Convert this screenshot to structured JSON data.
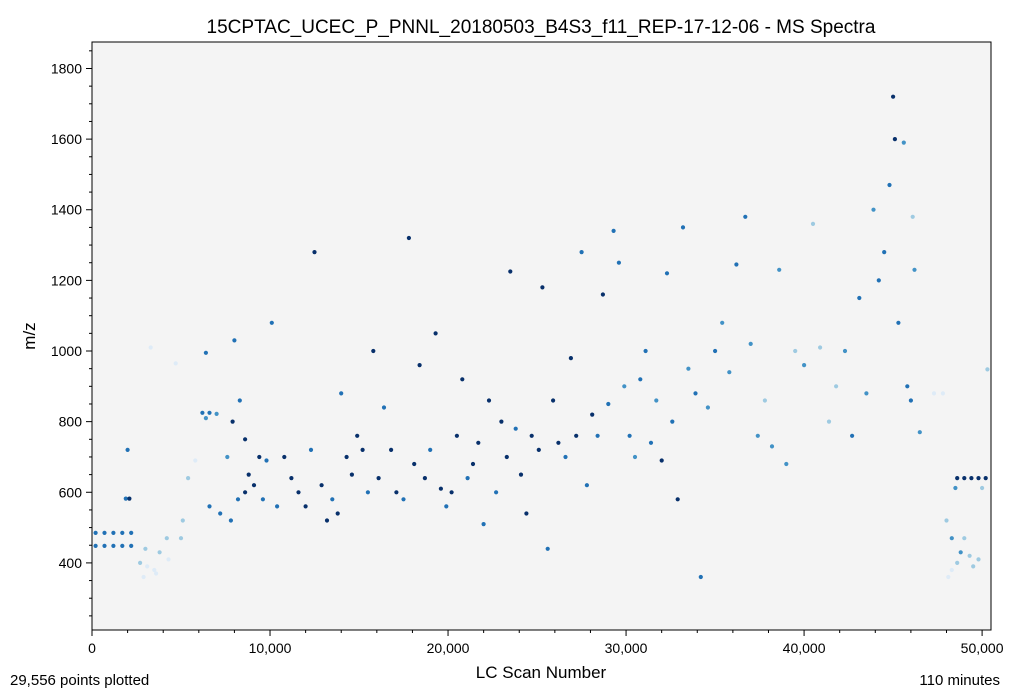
{
  "chart_data": {
    "type": "scatter",
    "title": "15CPTAC_UCEC_P_PNNL_20180503_B4S3_f11_REP-17-12-06 - MS Spectra",
    "xlabel": "LC Scan Number",
    "ylabel": "m/z",
    "xlim": [
      0,
      50500
    ],
    "ylim": [
      210,
      1875
    ],
    "x_ticks": [
      0,
      10000,
      20000,
      30000,
      40000,
      50000
    ],
    "x_tick_labels": [
      "0",
      "10,000",
      "20,000",
      "30,000",
      "40,000",
      "50,000"
    ],
    "y_ticks": [
      400,
      600,
      800,
      1000,
      1200,
      1400,
      1600,
      1800
    ],
    "y_tick_labels": [
      "400",
      "600",
      "800",
      "1000",
      "1200",
      "1400",
      "1600",
      "1800"
    ],
    "grid": false,
    "background_color": "#f4f4f4",
    "color_map": "blues",
    "colors": [
      "#deebf7",
      "#9ecae1",
      "#4292c6",
      "#2171b5",
      "#08306b"
    ],
    "points": [
      [
        200,
        448,
        3
      ],
      [
        700,
        448,
        3
      ],
      [
        1200,
        448,
        3
      ],
      [
        1700,
        448,
        3
      ],
      [
        2200,
        448,
        3
      ],
      [
        200,
        485,
        3
      ],
      [
        700,
        485,
        3
      ],
      [
        1200,
        485,
        3
      ],
      [
        1700,
        485,
        3
      ],
      [
        2200,
        485,
        3
      ],
      [
        1900,
        582,
        3
      ],
      [
        2100,
        582,
        4
      ],
      [
        2000,
        720,
        3
      ],
      [
        2700,
        400,
        1
      ],
      [
        3100,
        390,
        0
      ],
      [
        3500,
        380,
        0
      ],
      [
        3000,
        440,
        1
      ],
      [
        3800,
        430,
        1
      ],
      [
        4300,
        410,
        0
      ],
      [
        2900,
        360,
        0
      ],
      [
        3600,
        370,
        0
      ],
      [
        4200,
        470,
        1
      ],
      [
        5000,
        470,
        1
      ],
      [
        3300,
        1010,
        0
      ],
      [
        4700,
        965,
        0
      ],
      [
        5100,
        520,
        1
      ],
      [
        5400,
        640,
        1
      ],
      [
        5800,
        690,
        0
      ],
      [
        6200,
        825,
        3
      ],
      [
        6600,
        825,
        3
      ],
      [
        7000,
        822,
        2
      ],
      [
        6400,
        810,
        2
      ],
      [
        6400,
        995,
        3
      ],
      [
        6600,
        560,
        3
      ],
      [
        7200,
        540,
        3
      ],
      [
        7800,
        520,
        3
      ],
      [
        8200,
        580,
        3
      ],
      [
        8600,
        600,
        4
      ],
      [
        8800,
        650,
        4
      ],
      [
        9400,
        700,
        4
      ],
      [
        9800,
        690,
        3
      ],
      [
        7600,
        700,
        2
      ],
      [
        7900,
        800,
        4
      ],
      [
        8000,
        1030,
        3
      ],
      [
        8300,
        860,
        3
      ],
      [
        8600,
        750,
        4
      ],
      [
        9100,
        620,
        4
      ],
      [
        9600,
        580,
        3
      ],
      [
        10100,
        1080,
        3
      ],
      [
        10400,
        560,
        3
      ],
      [
        10800,
        700,
        4
      ],
      [
        11200,
        640,
        4
      ],
      [
        11600,
        600,
        4
      ],
      [
        12000,
        560,
        4
      ],
      [
        12300,
        720,
        3
      ],
      [
        12500,
        1280,
        4
      ],
      [
        12900,
        620,
        4
      ],
      [
        13200,
        520,
        4
      ],
      [
        13500,
        580,
        3
      ],
      [
        13800,
        540,
        4
      ],
      [
        14000,
        880,
        3
      ],
      [
        14300,
        700,
        4
      ],
      [
        14600,
        650,
        4
      ],
      [
        14900,
        760,
        4
      ],
      [
        15200,
        720,
        4
      ],
      [
        15500,
        600,
        3
      ],
      [
        15800,
        1000,
        4
      ],
      [
        16100,
        640,
        4
      ],
      [
        16400,
        840,
        3
      ],
      [
        16800,
        720,
        4
      ],
      [
        17100,
        600,
        4
      ],
      [
        17500,
        580,
        3
      ],
      [
        17800,
        1320,
        4
      ],
      [
        18100,
        680,
        4
      ],
      [
        18400,
        960,
        4
      ],
      [
        18700,
        640,
        4
      ],
      [
        19000,
        720,
        3
      ],
      [
        19300,
        1050,
        4
      ],
      [
        19600,
        610,
        4
      ],
      [
        19900,
        560,
        3
      ],
      [
        20200,
        600,
        4
      ],
      [
        20500,
        760,
        4
      ],
      [
        20800,
        920,
        4
      ],
      [
        21100,
        640,
        3
      ],
      [
        21400,
        680,
        4
      ],
      [
        21700,
        740,
        4
      ],
      [
        22000,
        510,
        3
      ],
      [
        22300,
        860,
        4
      ],
      [
        22700,
        600,
        3
      ],
      [
        23000,
        800,
        4
      ],
      [
        23300,
        700,
        4
      ],
      [
        23500,
        1225,
        4
      ],
      [
        23800,
        780,
        3
      ],
      [
        24100,
        650,
        4
      ],
      [
        24400,
        540,
        4
      ],
      [
        24700,
        760,
        4
      ],
      [
        25100,
        720,
        4
      ],
      [
        25300,
        1180,
        4
      ],
      [
        25600,
        440,
        3
      ],
      [
        25900,
        860,
        4
      ],
      [
        26200,
        740,
        4
      ],
      [
        26600,
        700,
        3
      ],
      [
        26900,
        980,
        4
      ],
      [
        27200,
        760,
        4
      ],
      [
        27500,
        1280,
        3
      ],
      [
        27800,
        620,
        3
      ],
      [
        28100,
        820,
        4
      ],
      [
        28400,
        760,
        3
      ],
      [
        28700,
        1160,
        4
      ],
      [
        29000,
        850,
        3
      ],
      [
        29300,
        1340,
        3
      ],
      [
        29600,
        1250,
        3
      ],
      [
        29900,
        900,
        2
      ],
      [
        30200,
        760,
        3
      ],
      [
        30500,
        700,
        2
      ],
      [
        30800,
        920,
        3
      ],
      [
        31100,
        1000,
        3
      ],
      [
        31400,
        740,
        3
      ],
      [
        31700,
        860,
        2
      ],
      [
        32000,
        690,
        4
      ],
      [
        32300,
        1220,
        3
      ],
      [
        32600,
        800,
        3
      ],
      [
        32900,
        580,
        4
      ],
      [
        33200,
        1350,
        3
      ],
      [
        33500,
        950,
        2
      ],
      [
        33900,
        880,
        3
      ],
      [
        34200,
        360,
        3
      ],
      [
        34600,
        840,
        2
      ],
      [
        35000,
        1000,
        3
      ],
      [
        35400,
        1080,
        2
      ],
      [
        35800,
        940,
        2
      ],
      [
        36200,
        1245,
        3
      ],
      [
        36700,
        1380,
        3
      ],
      [
        37000,
        1020,
        2
      ],
      [
        37400,
        760,
        2
      ],
      [
        37800,
        860,
        1
      ],
      [
        38200,
        730,
        2
      ],
      [
        38600,
        1230,
        2
      ],
      [
        39000,
        680,
        2
      ],
      [
        39500,
        1000,
        1
      ],
      [
        40000,
        960,
        2
      ],
      [
        40500,
        1360,
        1
      ],
      [
        40900,
        1010,
        1
      ],
      [
        41400,
        800,
        1
      ],
      [
        41800,
        900,
        1
      ],
      [
        42300,
        1000,
        2
      ],
      [
        42700,
        760,
        3
      ],
      [
        43100,
        1150,
        3
      ],
      [
        43500,
        880,
        2
      ],
      [
        43900,
        1400,
        2
      ],
      [
        44200,
        1200,
        3
      ],
      [
        44500,
        1280,
        3
      ],
      [
        44800,
        1470,
        3
      ],
      [
        45000,
        1720,
        4
      ],
      [
        45100,
        1600,
        4
      ],
      [
        45300,
        1080,
        3
      ],
      [
        45600,
        1590,
        2
      ],
      [
        45800,
        900,
        3
      ],
      [
        46000,
        860,
        3
      ],
      [
        46100,
        1380,
        1
      ],
      [
        46200,
        1230,
        2
      ],
      [
        46500,
        770,
        2
      ],
      [
        47300,
        880,
        0
      ],
      [
        47800,
        880,
        0
      ],
      [
        48000,
        520,
        1
      ],
      [
        48300,
        470,
        2
      ],
      [
        48300,
        380,
        0
      ],
      [
        48600,
        400,
        1
      ],
      [
        48800,
        430,
        2
      ],
      [
        49000,
        470,
        1
      ],
      [
        49300,
        420,
        1
      ],
      [
        49500,
        390,
        1
      ],
      [
        49800,
        410,
        1
      ],
      [
        48100,
        360,
        0
      ],
      [
        48600,
        640,
        4
      ],
      [
        49000,
        640,
        4
      ],
      [
        49400,
        640,
        4
      ],
      [
        49800,
        640,
        4
      ],
      [
        50200,
        640,
        4
      ],
      [
        48500,
        612,
        2
      ],
      [
        50000,
        612,
        1
      ],
      [
        50300,
        948,
        1
      ]
    ],
    "points_plotted_label": "29,556 points plotted",
    "duration_label": "110 minutes"
  }
}
